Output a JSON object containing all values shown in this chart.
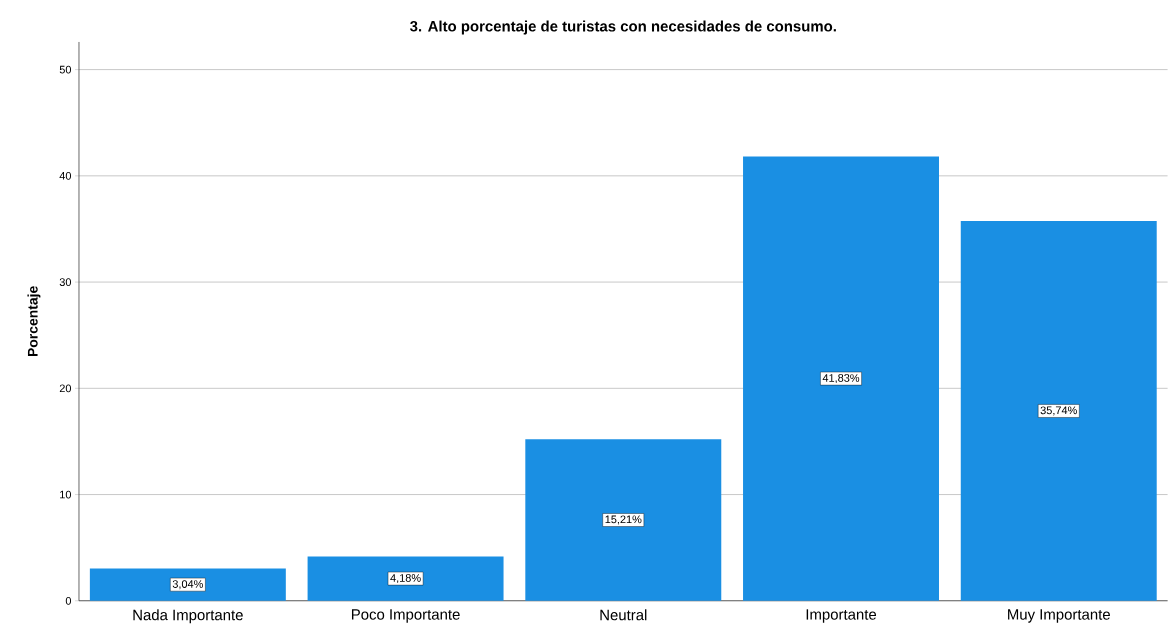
{
  "chart_data": {
    "type": "bar",
    "title": "3. Alto porcentaje de turistas con necesidades de consumo.",
    "ylabel": "Porcentaje",
    "categories": [
      "Nada Importante",
      "Poco Importante",
      "Neutral",
      "Importante",
      "Muy Importante"
    ],
    "values": [
      3.04,
      4.18,
      15.21,
      41.83,
      35.74
    ],
    "value_labels": [
      "3,04%",
      "4,18%",
      "15,21%",
      "41,83%",
      "35,74%"
    ],
    "color": "#1a8fe3",
    "ylim": [
      0,
      52.6
    ],
    "yticks": [
      0,
      10,
      20,
      30,
      40,
      50
    ],
    "grid": "y"
  }
}
